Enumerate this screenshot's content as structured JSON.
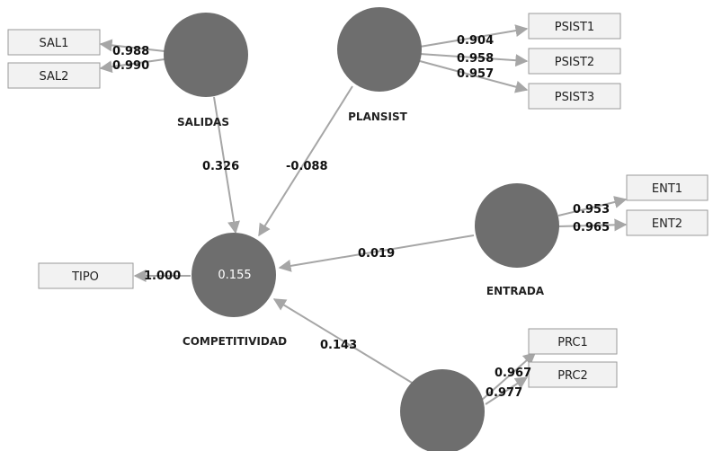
{
  "latents": {
    "salidas": {
      "label": "SALIDAS"
    },
    "plansist": {
      "label": "PLANSIST"
    },
    "entrada": {
      "label": "ENTRADA"
    },
    "competitividad": {
      "label": "COMPETITIVIDAD",
      "r2": "0.155"
    },
    "prc": {
      "label": ""
    }
  },
  "indicators": {
    "sal1": "SAL1",
    "sal2": "SAL2",
    "psist1": "PSIST1",
    "psist2": "PSIST2",
    "psist3": "PSIST3",
    "ent1": "ENT1",
    "ent2": "ENT2",
    "tipo": "TIPO",
    "prc1": "PRC1",
    "prc2": "PRC2"
  },
  "loadings": {
    "sal1": "0.988",
    "sal2": "0.990",
    "psist1": "0.904",
    "psist2": "0.958",
    "psist3": "0.957",
    "ent1": "0.953",
    "ent2": "0.965",
    "tipo": "1.000",
    "prc1": "0.967",
    "prc2": "0.977"
  },
  "paths": {
    "salidas_comp": "0.326",
    "plansist_comp": "-0.088",
    "entrada_comp": "0.019",
    "prc_comp": "0.143"
  }
}
